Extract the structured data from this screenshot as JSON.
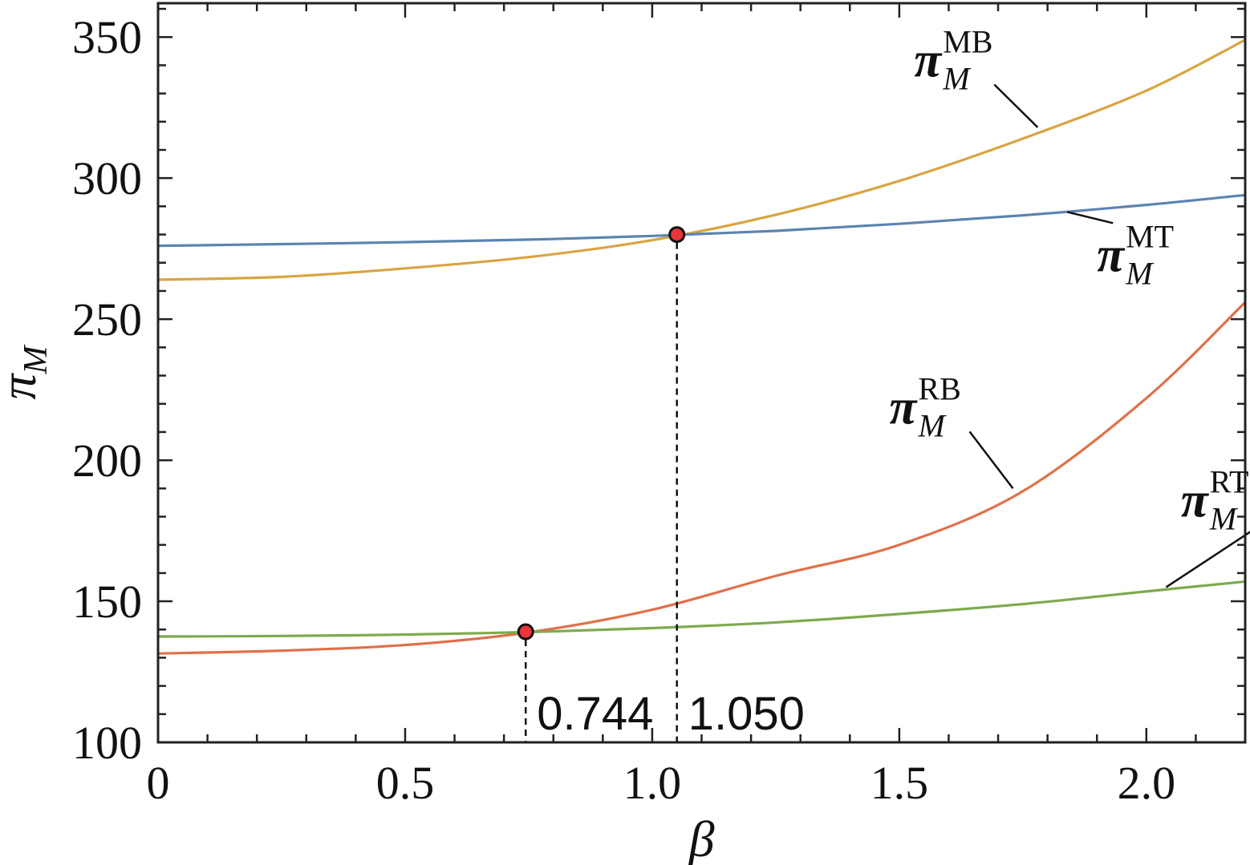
{
  "chart_data": {
    "type": "line",
    "title": "",
    "xlabel": "β",
    "ylabel": {
      "main": "π",
      "sub": "M"
    },
    "xlim": [
      0,
      2.2
    ],
    "ylim": [
      100,
      362
    ],
    "xticks": [
      {
        "value": 0,
        "label": "0"
      },
      {
        "value": 0.5,
        "label": "0.5"
      },
      {
        "value": 1.0,
        "label": "1.0"
      },
      {
        "value": 1.5,
        "label": "1.5"
      },
      {
        "value": 2.0,
        "label": "2.0"
      }
    ],
    "yticks": [
      {
        "value": 100,
        "label": "100"
      },
      {
        "value": 150,
        "label": "150"
      },
      {
        "value": 200,
        "label": "200"
      },
      {
        "value": 250,
        "label": "250"
      },
      {
        "value": 300,
        "label": "300"
      },
      {
        "value": 350,
        "label": "350"
      }
    ],
    "grid": false,
    "series": [
      {
        "name_main": "π",
        "name_sub": "M",
        "name_sup": "MB",
        "color": "#D9A441",
        "x": [
          0,
          0.25,
          0.5,
          0.75,
          1.0,
          1.25,
          1.5,
          1.75,
          2.0,
          2.2
        ],
        "y": [
          264,
          265,
          268,
          272,
          278,
          287,
          299,
          314,
          331,
          349
        ],
        "label_anchor": {
          "x": 1.78,
          "y": 318
        },
        "label_pos": {
          "x": 1.53,
          "y": 336
        }
      },
      {
        "name_main": "π",
        "name_sub": "M",
        "name_sup": "MT",
        "color": "#5B84B1",
        "x": [
          0,
          0.25,
          0.5,
          0.75,
          1.0,
          1.25,
          1.5,
          1.75,
          2.0,
          2.2
        ],
        "y": [
          276,
          276.6,
          277.3,
          278.2,
          279.5,
          281.3,
          283.8,
          286.8,
          290.5,
          294
        ],
        "label_anchor": {
          "x": 1.84,
          "y": 288
        },
        "label_pos": {
          "x": 1.9,
          "y": 267
        }
      },
      {
        "name_main": "π",
        "name_sub": "M",
        "name_sup": "RB",
        "color": "#E0704A",
        "x": [
          0,
          0.25,
          0.5,
          0.75,
          1.0,
          1.25,
          1.5,
          1.75,
          2.0,
          2.2
        ],
        "y": [
          131.5,
          132.5,
          134.5,
          139,
          147,
          159,
          170,
          189,
          222,
          256
        ],
        "label_anchor": {
          "x": 1.73,
          "y": 190
        },
        "label_pos": {
          "x": 1.48,
          "y": 213
        }
      },
      {
        "name_main": "π",
        "name_sub": "M",
        "name_sup": "RT",
        "color": "#7DAA4E",
        "x": [
          0,
          0.25,
          0.5,
          0.75,
          1.0,
          1.25,
          1.5,
          1.75,
          2.0,
          2.2
        ],
        "y": [
          137.5,
          137.7,
          138.2,
          139.1,
          140.5,
          142.5,
          145.5,
          149,
          153.5,
          157
        ],
        "label_anchor": {
          "x": 2.04,
          "y": 155
        },
        "label_pos": {
          "x": 2.07,
          "y": 180
        }
      }
    ],
    "annotations": [
      {
        "x": 0.744,
        "y": 139.2,
        "label": "0.744",
        "label_side": "right"
      },
      {
        "x": 1.05,
        "y": 280,
        "label": "1.050",
        "label_side": "right"
      }
    ]
  }
}
